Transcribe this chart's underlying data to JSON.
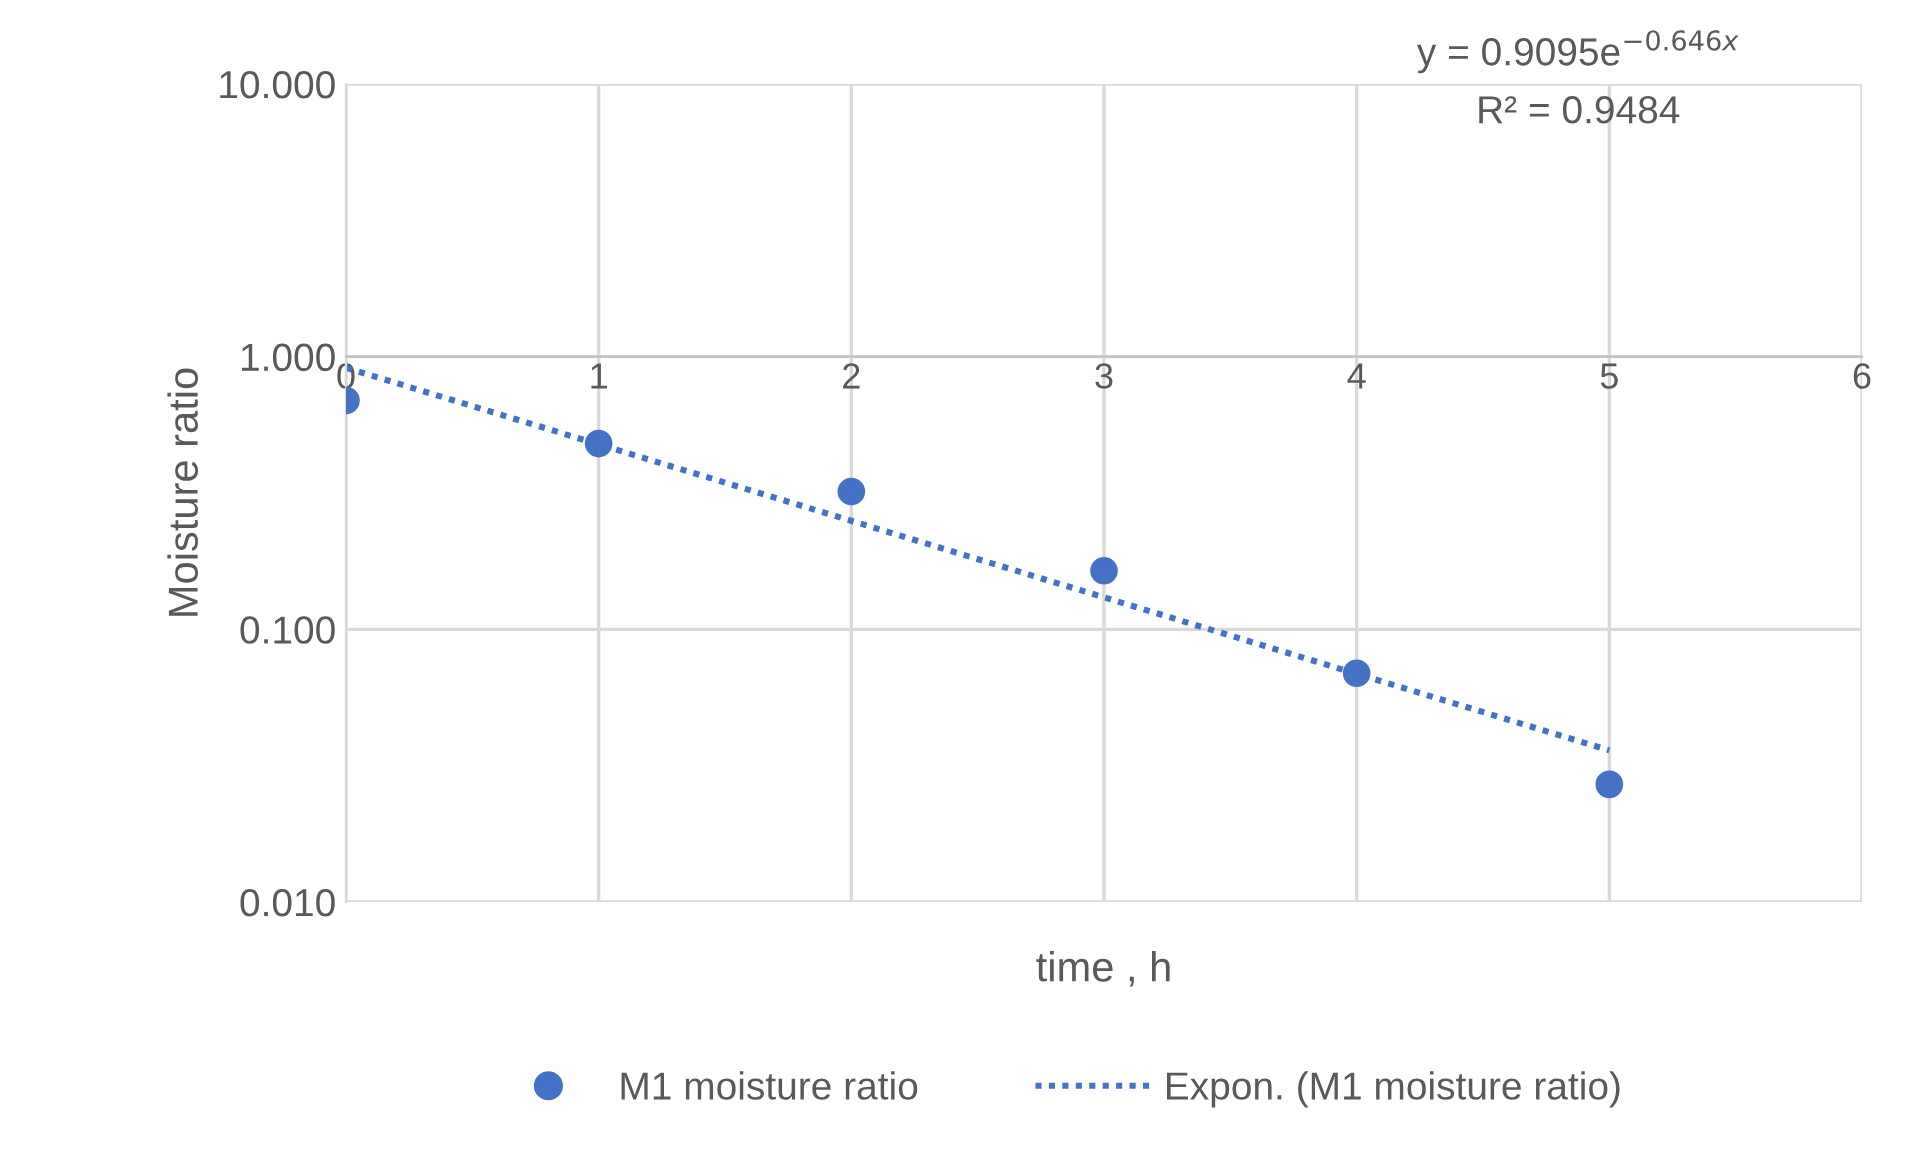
{
  "chart_data": {
    "type": "scatter",
    "xlabel": "time , h",
    "ylabel": "Moisture ratio",
    "x": [
      0,
      1,
      2,
      3,
      4,
      5
    ],
    "series": [
      {
        "name": "M1 moisture ratio",
        "color": "#4472c4",
        "values": [
          0.69,
          0.48,
          0.32,
          0.164,
          0.069,
          0.027
        ],
        "marker": "circle"
      },
      {
        "name": "Expon. (M1 moisture ratio)",
        "type": "line",
        "color": "#4472c4",
        "x": [
          0,
          5
        ],
        "values": [
          0.91,
          0.036
        ],
        "line_style": "dotted",
        "marker": "none"
      }
    ],
    "log": "y",
    "xlim": [
      0,
      6
    ],
    "xticks": [
      0,
      1,
      2,
      3,
      4,
      5,
      6
    ],
    "ylim": [
      0.01,
      10
    ],
    "yticks": [
      {
        "value": 0.01,
        "label": "0.010"
      },
      {
        "value": 0.1,
        "label": "0.100"
      },
      {
        "value": 1,
        "label": "1.000"
      },
      {
        "value": 10,
        "label": "10.000"
      }
    ],
    "grid": true,
    "legend": "bottom",
    "annotations": [
      "y = 0.9095e$^{−0.646x}$",
      "R² = 0.9484"
    ]
  }
}
